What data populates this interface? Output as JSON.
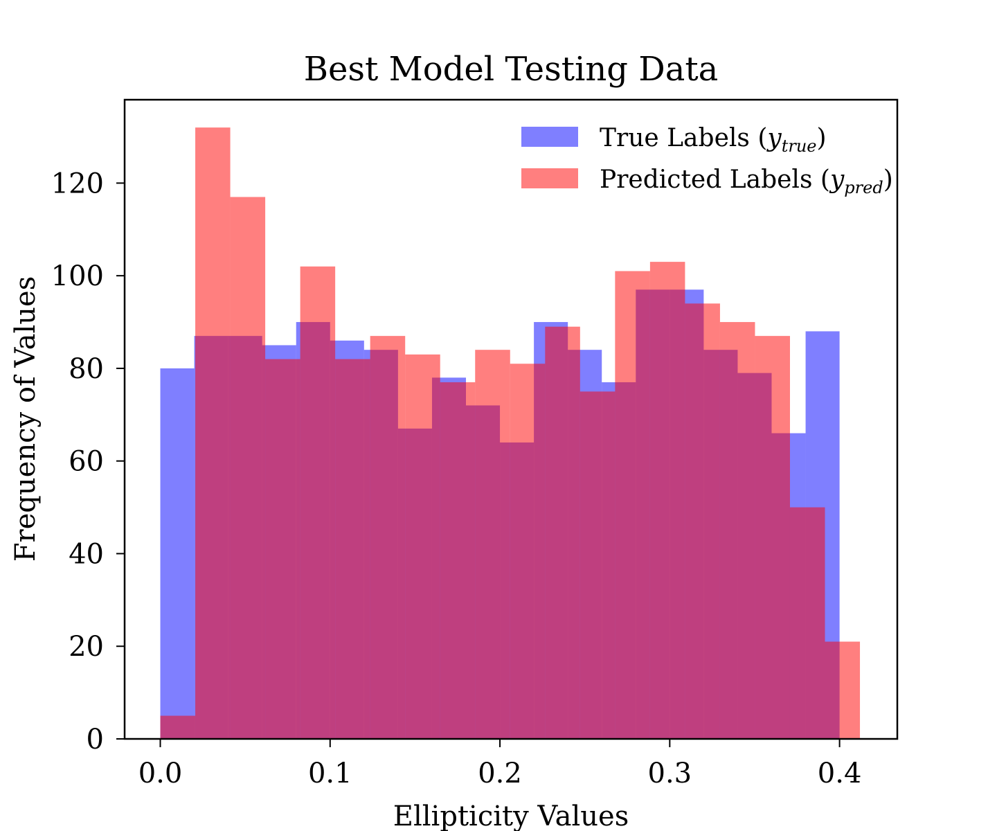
{
  "chart_data": {
    "type": "bar",
    "title": "Best Model Testing Data",
    "xlabel": "Ellipticity Values",
    "ylabel": "Frequency of Values",
    "xlim": [
      -0.021,
      0.434
    ],
    "ylim": [
      0,
      138
    ],
    "x_ticks": [
      "0.0",
      "0.1",
      "0.2",
      "0.3",
      "0.4"
    ],
    "x_tick_values": [
      0.0,
      0.1,
      0.2,
      0.3,
      0.4
    ],
    "y_ticks": [
      "0",
      "20",
      "40",
      "60",
      "80",
      "100",
      "120"
    ],
    "y_tick_values": [
      0,
      20,
      40,
      60,
      80,
      100,
      120
    ],
    "grid": false,
    "legend_position": "top-right",
    "series": [
      {
        "name": "True Labels",
        "legend_symbol": "y",
        "legend_subscript": "true",
        "color": "#0000ff",
        "alpha": 0.5,
        "bin_edges": [
          0.0,
          0.02,
          0.04,
          0.06,
          0.08,
          0.1,
          0.12,
          0.14,
          0.16,
          0.18,
          0.2,
          0.22,
          0.24,
          0.26,
          0.28,
          0.3,
          0.32,
          0.34,
          0.36,
          0.38,
          0.4
        ],
        "values": [
          80,
          87,
          87,
          85,
          90,
          86,
          84,
          67,
          78,
          72,
          64,
          90,
          84,
          77,
          97,
          97,
          84,
          79,
          66,
          88
        ]
      },
      {
        "name": "Predicted Labels",
        "legend_symbol": "y",
        "legend_subscript": "pred",
        "color": "#ff0000",
        "alpha": 0.5,
        "bin_edges": [
          0.0,
          0.0206,
          0.0412,
          0.0618,
          0.0824,
          0.103,
          0.1236,
          0.1442,
          0.1648,
          0.1854,
          0.206,
          0.2266,
          0.2472,
          0.2678,
          0.2884,
          0.309,
          0.3296,
          0.3502,
          0.3708,
          0.3914,
          0.412
        ],
        "values": [
          5,
          132,
          117,
          82,
          102,
          82,
          87,
          83,
          77,
          84,
          81,
          89,
          75,
          101,
          103,
          94,
          90,
          87,
          50,
          21
        ]
      }
    ]
  }
}
